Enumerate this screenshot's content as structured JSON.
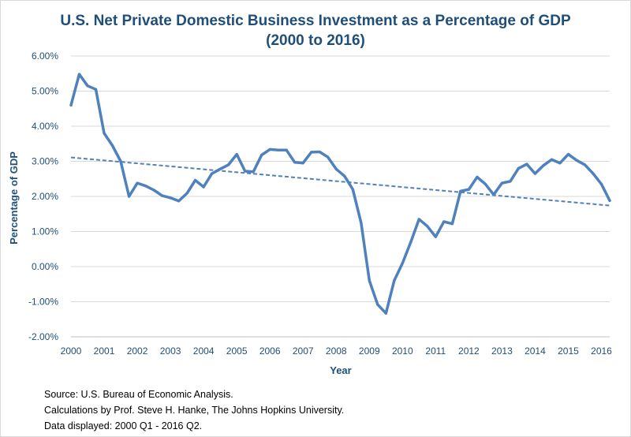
{
  "chart_data": {
    "type": "line",
    "title": "U.S. Net Private Domestic Business Investment as a Percentage of GDP",
    "subtitle": "(2000 to 2016)",
    "xlabel": "Year",
    "ylabel": "Percentage of GDP",
    "ylim": [
      -2.0,
      6.0
    ],
    "yticks": [
      "6.00%",
      "5.00%",
      "4.00%",
      "3.00%",
      "2.00%",
      "1.00%",
      "0.00%",
      "-1.00%",
      "-2.00%"
    ],
    "ytick_values": [
      6,
      5,
      4,
      3,
      2,
      1,
      0,
      -1,
      -2
    ],
    "xlim": [
      2000.0,
      2016.25
    ],
    "xticks": [
      "2000",
      "2001",
      "2002",
      "2003",
      "2004",
      "2005",
      "2006",
      "2007",
      "2008",
      "2009",
      "2010",
      "2011",
      "2012",
      "2013",
      "2014",
      "2015",
      "2016"
    ],
    "grid": true,
    "series": [
      {
        "type": "line",
        "color": "#4f81bd",
        "x": [
          2000.0,
          2000.25,
          2000.5,
          2000.75,
          2001.0,
          2001.25,
          2001.5,
          2001.75,
          2002.0,
          2002.25,
          2002.5,
          2002.75,
          2003.0,
          2003.25,
          2003.5,
          2003.75,
          2004.0,
          2004.25,
          2004.5,
          2004.75,
          2005.0,
          2005.25,
          2005.5,
          2005.75,
          2006.0,
          2006.25,
          2006.5,
          2006.75,
          2007.0,
          2007.25,
          2007.5,
          2007.75,
          2008.0,
          2008.25,
          2008.5,
          2008.75,
          2009.0,
          2009.25,
          2009.5,
          2009.75,
          2010.0,
          2010.25,
          2010.5,
          2010.75,
          2011.0,
          2011.25,
          2011.5,
          2011.75,
          2012.0,
          2012.25,
          2012.5,
          2012.75,
          2013.0,
          2013.25,
          2013.5,
          2013.75,
          2014.0,
          2014.25,
          2014.5,
          2014.75,
          2015.0,
          2015.25,
          2015.5,
          2015.75,
          2016.0,
          2016.25
        ],
        "values": [
          4.6,
          5.48,
          5.15,
          5.05,
          3.8,
          3.45,
          3.0,
          2.0,
          2.38,
          2.3,
          2.18,
          2.02,
          1.96,
          1.87,
          2.09,
          2.46,
          2.27,
          2.65,
          2.78,
          2.9,
          3.2,
          2.72,
          2.7,
          3.18,
          3.34,
          3.32,
          3.32,
          2.97,
          2.95,
          3.26,
          3.27,
          3.12,
          2.78,
          2.58,
          2.2,
          1.25,
          -0.4,
          -1.08,
          -1.33,
          -0.4,
          0.1,
          0.7,
          1.35,
          1.15,
          0.85,
          1.28,
          1.22,
          2.15,
          2.2,
          2.55,
          2.35,
          2.05,
          2.38,
          2.43,
          2.8,
          2.92,
          2.65,
          2.88,
          3.05,
          2.95,
          3.2,
          3.03,
          2.9,
          2.65,
          2.35,
          1.88
        ]
      },
      {
        "type": "trendline",
        "color": "#4f81bd",
        "dashed": true,
        "x": [
          2000.0,
          2016.25
        ],
        "values": [
          3.11,
          1.74
        ]
      }
    ]
  },
  "notes": {
    "source": "Source: U.S. Bureau of Economic Analysis.",
    "calculations": "Calculations by Prof. Steve H. Hanke, The Johns Hopkins University.",
    "displayed": "Data displayed: 2000 Q1 - 2016 Q2."
  }
}
